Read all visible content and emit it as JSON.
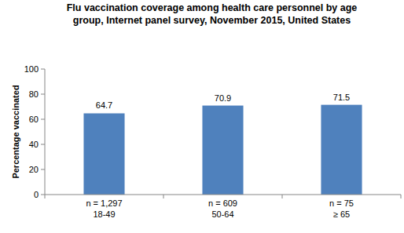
{
  "chart_data": {
    "type": "bar",
    "title": "Flu vaccination coverage among health care personnel by age group, Internet panel survey, November 2015, United States",
    "y_label": "Percentage vaccinated",
    "categories": [
      "n = 1,297\n18-49",
      "n = 609\n50-64",
      "n = 75\n≥ 65"
    ],
    "values": [
      64.7,
      70.9,
      71.5
    ],
    "color": "#4f81bd",
    "ylim": [
      0,
      100
    ],
    "yticks": [
      0,
      20,
      40,
      60,
      80,
      100
    ],
    "grid": false,
    "data_labels": true
  }
}
